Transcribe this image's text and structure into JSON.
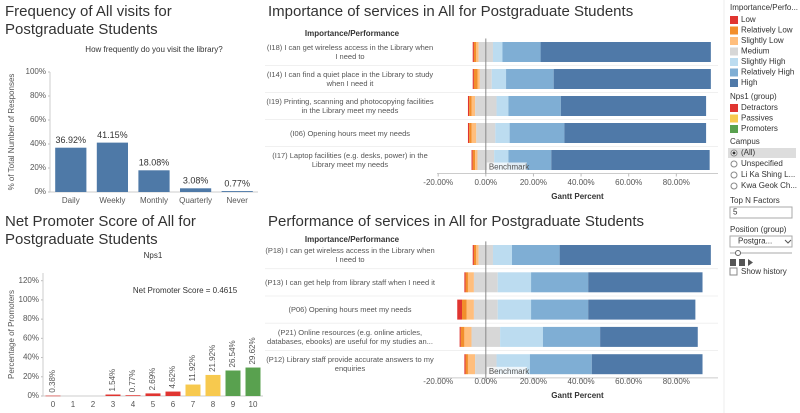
{
  "chart_data": [
    {
      "type": "bar",
      "title": "Frequency of All visits for Postgraduate Students",
      "subtitle": "How frequently do you visit the library?",
      "ylabel": "% of Total Number of Responses",
      "categories": [
        "Daily",
        "Weekly",
        "Monthly",
        "Quarterly",
        "Never"
      ],
      "values": [
        36.92,
        41.15,
        18.08,
        3.08,
        0.77
      ],
      "value_labels": [
        "36.92%",
        "41.15%",
        "18.08%",
        "3.08%",
        "0.77%"
      ],
      "color": "#4e79a7",
      "ylim": [
        0,
        100
      ],
      "yticks": [
        {
          "value": 0,
          "label": "0%"
        },
        {
          "value": 20,
          "label": "20%"
        },
        {
          "value": 40,
          "label": "40%"
        },
        {
          "value": 60,
          "label": "60%"
        },
        {
          "value": 80,
          "label": "80%"
        },
        {
          "value": 100,
          "label": "100%"
        }
      ],
      "grid": false
    },
    {
      "type": "diverging_bar",
      "title": "Importance of services in All for Postgraduate Students",
      "header": "Importance/Performance",
      "xlabel": "Gantt Percent",
      "categories": [
        "(I18) I can get wireless access in the Library when I need to",
        "(I14) I can find a quiet place in the Library to study when I need it",
        "(I19) Printing, scanning and photocopying facilities in the Library meet my needs",
        "(I06) Opening hours meet my needs",
        "(I17) Laptop facilities (e.g. desks, power) in the Library meet my needs"
      ],
      "series": [
        {
          "name": "Low",
          "color": "#e03531",
          "values": [
            0.5,
            0.5,
            0.5,
            0.5,
            0.5
          ]
        },
        {
          "name": "Relatively Low",
          "color": "#f28e2b",
          "values": [
            1,
            1.5,
            1,
            1,
            1
          ]
        },
        {
          "name": "Slightly Low",
          "color": "#ffbe7d",
          "values": [
            1,
            1,
            1.5,
            2,
            1
          ]
        },
        {
          "name": "Medium",
          "color": "#d7d7d7",
          "values": [
            6,
            5,
            9,
            8,
            7
          ]
        },
        {
          "name": "Slightly High",
          "color": "#bcdcf0",
          "values": [
            4,
            6,
            5,
            6,
            6
          ]
        },
        {
          "name": "Relatively High",
          "color": "#7faed4",
          "values": [
            16,
            20,
            22,
            23,
            18
          ]
        },
        {
          "name": "High",
          "color": "#4f79a8",
          "values": [
            71.5,
            66,
            61,
            59.5,
            66.5
          ]
        }
      ],
      "xlim": [
        -20.5,
        97.5
      ],
      "xticks": [
        {
          "value": -20,
          "label": "-20.00%"
        },
        {
          "value": 0,
          "label": "0.00%"
        },
        {
          "value": 20,
          "label": "20.00%"
        },
        {
          "value": 40,
          "label": "40.00%"
        },
        {
          "value": 60,
          "label": "60.00%"
        },
        {
          "value": 80,
          "label": "80.00%"
        }
      ],
      "benchmark": {
        "value": 0,
        "label": "Benchmark"
      }
    },
    {
      "type": "diverging_bar",
      "title": "Performance of services in All for Postgraduate Students",
      "header": "Importance/Performance",
      "xlabel": "Gantt Percent",
      "categories": [
        "(P18) I can get wireless access in the Library when I need to",
        "(P13) I can get help from library staff when I need it",
        "(P06) Opening hours meet my needs",
        "(P21) Online resources (e.g. online articles, databases, ebooks) are useful for my studies an...",
        "(P12) Library staff provide accurate answers to my enquiries"
      ],
      "series": [
        {
          "name": "Low",
          "color": "#e03531",
          "values": [
            0.5,
            0.5,
            2,
            0.5,
            0.5
          ]
        },
        {
          "name": "Relatively Low",
          "color": "#f28e2b",
          "values": [
            1,
            1,
            2,
            1.5,
            1
          ]
        },
        {
          "name": "Slightly Low",
          "color": "#ffbe7d",
          "values": [
            1,
            2.5,
            3,
            3,
            3
          ]
        },
        {
          "name": "Medium",
          "color": "#d7d7d7",
          "values": [
            6,
            10,
            10,
            12,
            9
          ]
        },
        {
          "name": "Slightly High",
          "color": "#bcdcf0",
          "values": [
            8,
            14,
            14,
            18,
            14
          ]
        },
        {
          "name": "Relatively High",
          "color": "#7faed4",
          "values": [
            20,
            24,
            24,
            24,
            26
          ]
        },
        {
          "name": "High",
          "color": "#4f79a8",
          "values": [
            63.5,
            48,
            45,
            41,
            46.5
          ]
        }
      ],
      "xlim": [
        -20.5,
        97.5
      ],
      "xticks": [
        {
          "value": -20,
          "label": "-20.00%"
        },
        {
          "value": 0,
          "label": "0.00%"
        },
        {
          "value": 20,
          "label": "20.00%"
        },
        {
          "value": 40,
          "label": "40.00%"
        },
        {
          "value": 60,
          "label": "60.00%"
        },
        {
          "value": 80,
          "label": "80.00%"
        }
      ],
      "benchmark": {
        "value": 0,
        "label": "Benchmark"
      }
    },
    {
      "type": "bar",
      "title": "Net Promoter Score of All for Postgraduate Students",
      "subtitle": "Nps1",
      "ylabel": "Percentage of Promoters",
      "annotation": "Net Promoter Score = 0.4615",
      "categories": [
        "0",
        "1",
        "2",
        "3",
        "4",
        "5",
        "6",
        "7",
        "8",
        "9",
        "10"
      ],
      "values": [
        0.38,
        null,
        null,
        1.54,
        0.77,
        2.69,
        4.62,
        11.92,
        21.92,
        26.54,
        29.62
      ],
      "value_labels": [
        "0.38%",
        null,
        null,
        "1.54%",
        "0.77%",
        "2.69%",
        "4.62%",
        "11.92%",
        "21.92%",
        "26.54%",
        "29.62%"
      ],
      "colors": [
        "#e03531",
        "#e03531",
        "#e03531",
        "#e03531",
        "#e03531",
        "#e03531",
        "#e03531",
        "#f7c94e",
        "#f7c94e",
        "#59a14f",
        "#59a14f"
      ],
      "legend": [
        {
          "name": "Detractors",
          "color": "#e03531"
        },
        {
          "name": "Passives",
          "color": "#f7c94e"
        },
        {
          "name": "Promoters",
          "color": "#59a14f"
        }
      ],
      "ylim": [
        0,
        128
      ],
      "yticks": [
        {
          "value": 0,
          "label": "0%"
        },
        {
          "value": 20,
          "label": "20%"
        },
        {
          "value": 40,
          "label": "40%"
        },
        {
          "value": 60,
          "label": "60%"
        },
        {
          "value": 80,
          "label": "80%"
        },
        {
          "value": 100,
          "label": "100%"
        },
        {
          "value": 120,
          "label": "120%"
        }
      ],
      "grid": false
    }
  ],
  "sidebar": {
    "importance_title": "Importance/Perfo...",
    "nps_title": "Nps1 (group)",
    "campus_title": "Campus",
    "campus_options": [
      "(All)",
      "Unspecified",
      "Li Ka Shing L...",
      "Kwa Geok Ch..."
    ],
    "topn_title": "Top N Factors",
    "topn_value": 5,
    "position_title": "Position (group)",
    "position_value": "Postgra...",
    "show_history": "Show history"
  }
}
